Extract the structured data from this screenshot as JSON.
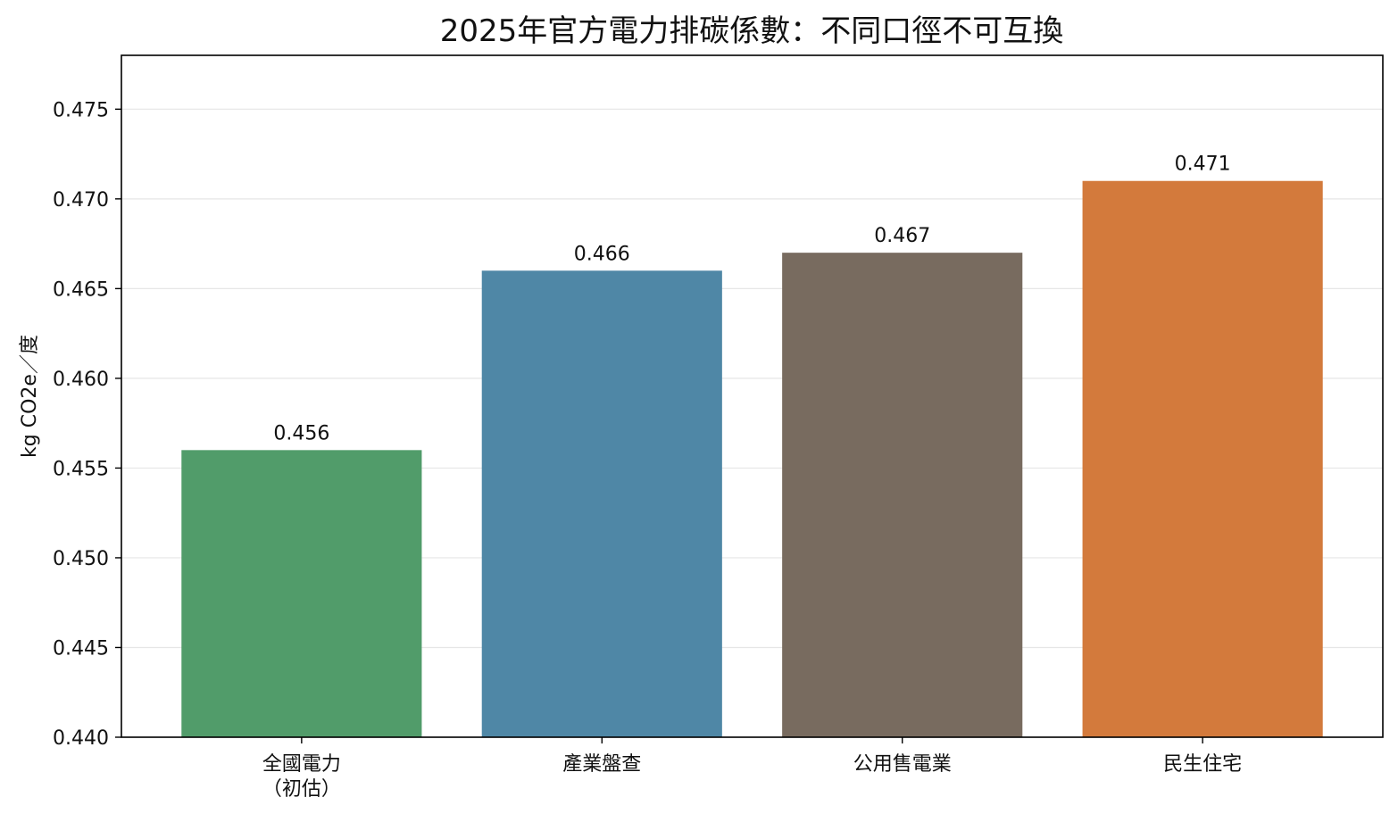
{
  "chart_data": {
    "type": "bar",
    "title": "2025年官方電力排碳係數：不同口徑不可互換",
    "xlabel": "",
    "ylabel": "kg CO2e／度",
    "ylim": [
      0.44,
      0.478
    ],
    "yticks": [
      "0.440",
      "0.445",
      "0.450",
      "0.455",
      "0.460",
      "0.465",
      "0.470",
      "0.475"
    ],
    "grid": "horizontal",
    "categories": [
      [
        "全國電力",
        "（初估）"
      ],
      [
        "產業盤查"
      ],
      [
        "公用售電業"
      ],
      [
        "民生住宅"
      ]
    ],
    "values": [
      0.456,
      0.466,
      0.467,
      0.471
    ],
    "value_labels": [
      "0.456",
      "0.466",
      "0.467",
      "0.471"
    ],
    "colors": [
      "#519c6a",
      "#4f87a6",
      "#786b5f",
      "#d37a3c"
    ]
  }
}
